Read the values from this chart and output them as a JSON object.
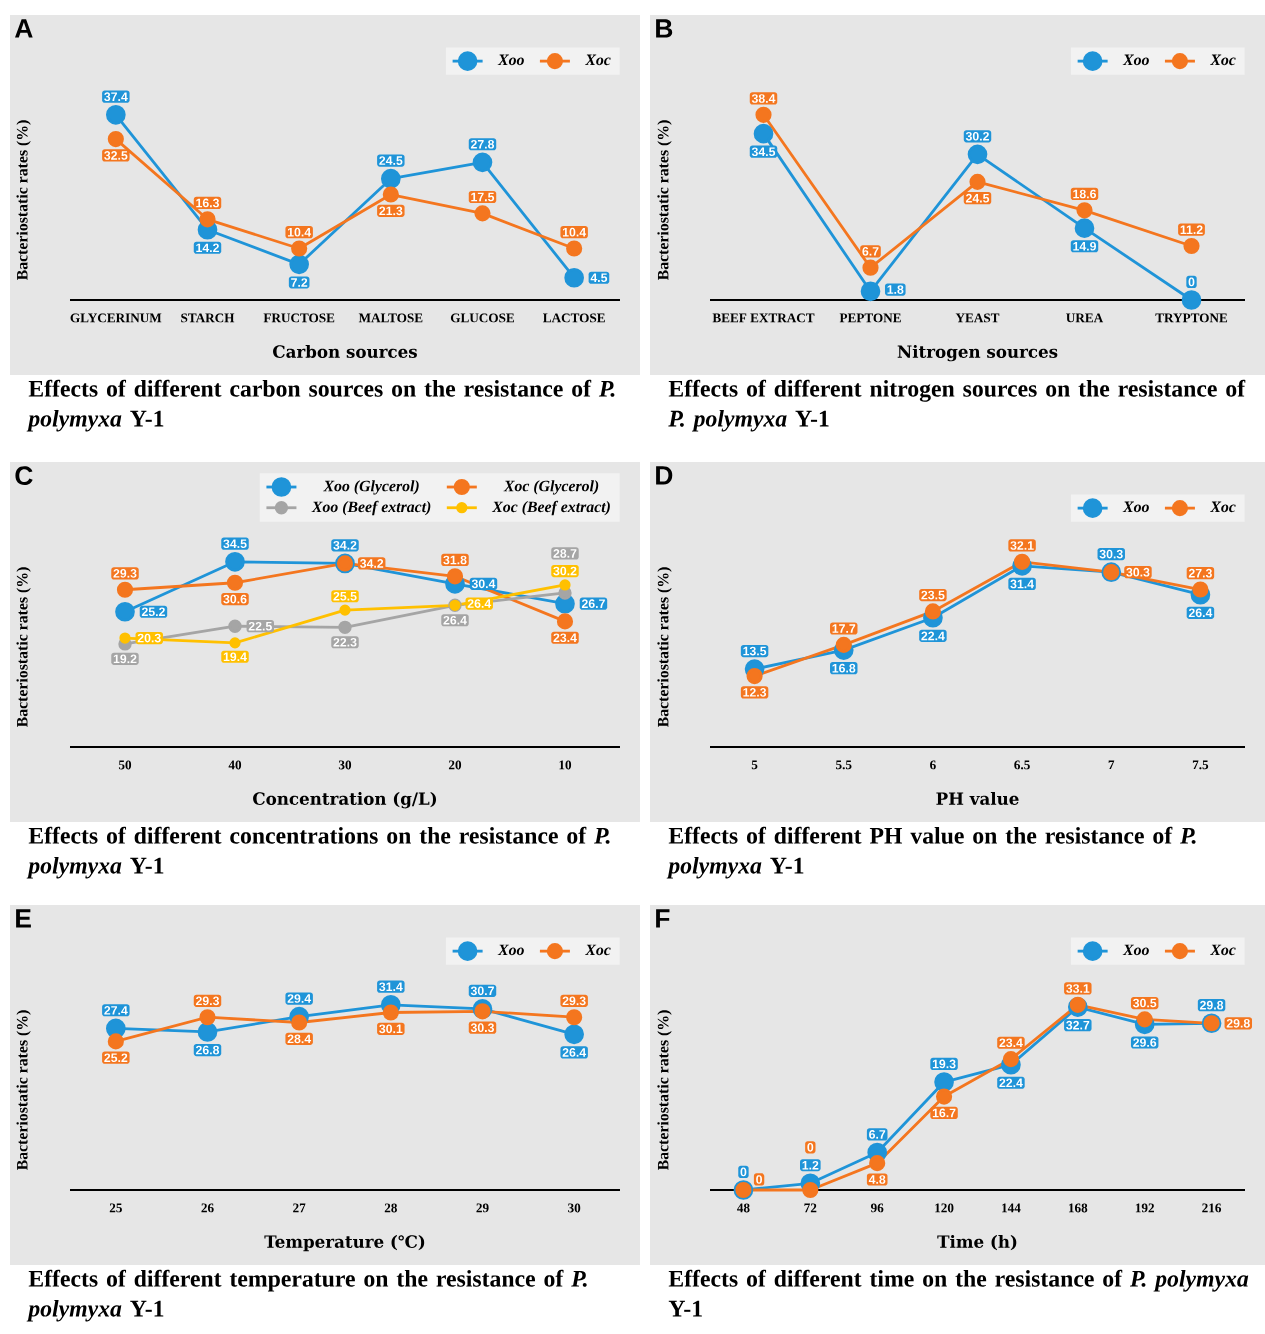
{
  "chart_data": [
    {
      "type": "line",
      "title": "Effects of different carbon sources on the resistance of *P. polymyxa* Y-1",
      "xlabel": "Carbon sources",
      "ylabel": "Bacteriostatic rates (%)",
      "annotations": [
        "A"
      ],
      "categories": [
        "GLYCERINUM",
        "STARCH",
        "FRUCTOSE",
        "MALTOSE",
        "GLUCOSE",
        "LACTOSE"
      ],
      "series": [
        {
          "name": "Xoo",
          "color": "#1f94d8",
          "values": [
            37.4,
            14.2,
            7.2,
            24.5,
            27.8,
            4.5
          ]
        },
        {
          "name": "Xoc",
          "color": "#f4761f",
          "values": [
            32.5,
            16.3,
            10.4,
            21.3,
            17.5,
            10.4
          ]
        }
      ],
      "data_labels": true,
      "legend": "top right",
      "marker": "circle"
    },
    {
      "type": "line",
      "title": "Effects of different nitrogen sources on the resistance of *P. polymyxa* Y-1",
      "xlabel": "Nitrogen sources",
      "ylabel": "Bacteriostatic rates (%)",
      "annotations": [
        "B"
      ],
      "categories": [
        "BEEF EXTRACT",
        "PEPTONE",
        "YEAST",
        "UREA",
        "TRYPTONE"
      ],
      "series": [
        {
          "name": "Xoo",
          "color": "#1f94d8",
          "values": [
            34.5,
            1.8,
            30.2,
            14.9,
            0
          ]
        },
        {
          "name": "Xoc",
          "color": "#f4761f",
          "values": [
            38.4,
            6.7,
            24.5,
            18.6,
            11.2
          ]
        }
      ],
      "data_labels": true,
      "legend": "top right",
      "marker": "circle"
    },
    {
      "type": "line",
      "title": "Effects of different concentrations on the resistance of *P. polymyxa* Y-1",
      "xlabel": "Concentration (g/L)",
      "ylabel": "Bacteriostatic rates (%)",
      "annotations": [
        "C"
      ],
      "categories": [
        "50",
        "40",
        "30",
        "20",
        "10"
      ],
      "series": [
        {
          "name": "Xoo (Glycerol)",
          "color": "#1f94d8",
          "values": [
            25.2,
            34.5,
            34.2,
            30.4,
            26.7
          ]
        },
        {
          "name": "Xoc (Glycerol)",
          "color": "#f4761f",
          "values": [
            29.3,
            30.6,
            34.2,
            31.8,
            23.4
          ]
        },
        {
          "name": "Xoo (Beef extract)",
          "color": "#a5a5a5",
          "values": [
            19.2,
            22.5,
            22.3,
            26.4,
            28.7
          ]
        },
        {
          "name": "Xoc (Beef extract)",
          "color": "#ffc000",
          "values": [
            20.3,
            19.4,
            25.5,
            26.4,
            30.2
          ]
        }
      ],
      "data_labels": true,
      "legend": "top right",
      "marker": "circle"
    },
    {
      "type": "line",
      "title": "Effects of different PH value on the resistance of *P. polymyxa* Y-1",
      "xlabel": "PH value",
      "ylabel": "Bacteriostatic rates (%)",
      "annotations": [
        "D"
      ],
      "categories": [
        "5",
        "5.5",
        "6",
        "6.5",
        "7",
        "7.5"
      ],
      "series": [
        {
          "name": "Xoo",
          "color": "#1f94d8",
          "values": [
            13.5,
            16.8,
            22.4,
            31.4,
            30.3,
            26.4
          ]
        },
        {
          "name": "Xoc",
          "color": "#f4761f",
          "values": [
            12.3,
            17.7,
            23.5,
            32.1,
            30.3,
            27.3
          ]
        }
      ],
      "data_labels": true,
      "legend": "top right",
      "marker": "circle"
    },
    {
      "type": "line",
      "title": "Effects of different temperature on the resistance of *P. polymyxa* Y-1",
      "xlabel": "Temperature (℃)",
      "ylabel": "Bacteriostatic rates (%)",
      "annotations": [
        "E"
      ],
      "categories": [
        "25",
        "26",
        "27",
        "28",
        "29",
        "30"
      ],
      "series": [
        {
          "name": "Xoo",
          "color": "#1f94d8",
          "values": [
            27.4,
            26.8,
            29.4,
            31.4,
            30.7,
            26.4
          ]
        },
        {
          "name": "Xoc",
          "color": "#f4761f",
          "values": [
            25.2,
            29.3,
            28.4,
            30.1,
            30.3,
            29.3
          ]
        }
      ],
      "data_labels": true,
      "legend": "top right",
      "marker": "circle"
    },
    {
      "type": "line",
      "title": "Effects of different time on the resistance of *P. polymyxa* Y-1",
      "xlabel": "Time (h)",
      "ylabel": "Bacteriostatic rates (%)",
      "annotations": [
        "F"
      ],
      "categories": [
        "48",
        "72",
        "96",
        "120",
        "144",
        "168",
        "192",
        "216"
      ],
      "series": [
        {
          "name": "Xoo",
          "color": "#1f94d8",
          "values": [
            0,
            1.2,
            6.7,
            19.3,
            22.4,
            32.7,
            29.6,
            29.8
          ]
        },
        {
          "name": "Xoc",
          "color": "#f4761f",
          "values": [
            0,
            0,
            4.8,
            16.7,
            23.4,
            33.1,
            30.5,
            29.8
          ]
        }
      ],
      "data_labels": true,
      "legend": "top right",
      "marker": "circle"
    }
  ]
}
